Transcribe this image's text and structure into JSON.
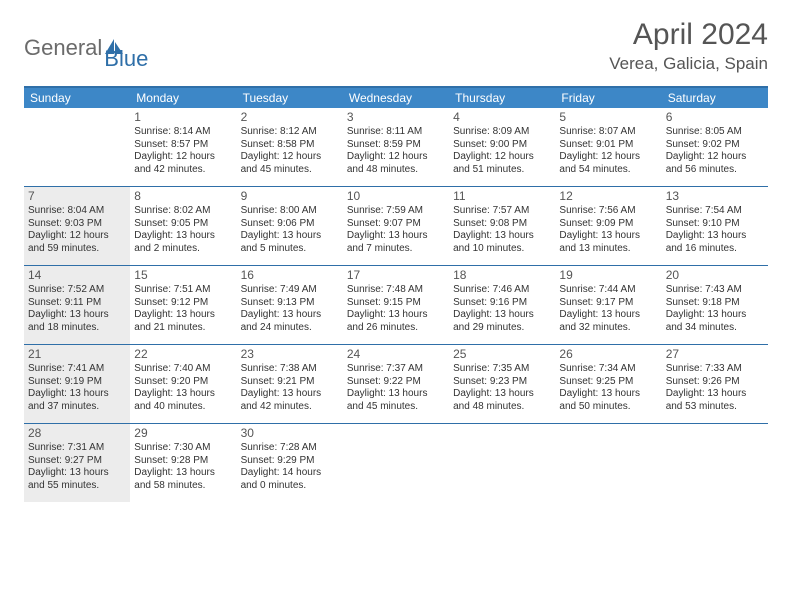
{
  "logo": {
    "part1": "General",
    "part2": "Blue"
  },
  "title": "April 2024",
  "location": "Verea, Galicia, Spain",
  "weekdays": [
    "Sunday",
    "Monday",
    "Tuesday",
    "Wednesday",
    "Thursday",
    "Friday",
    "Saturday"
  ],
  "colors": {
    "header_bar": "#3d87c7",
    "rule": "#2f6fa8",
    "shaded": "#ececec",
    "text": "#333333",
    "title": "#555555"
  },
  "weeks": [
    [
      {
        "num": "",
        "shaded": false,
        "lines": []
      },
      {
        "num": "1",
        "shaded": false,
        "lines": [
          "Sunrise: 8:14 AM",
          "Sunset: 8:57 PM",
          "Daylight: 12 hours",
          "and 42 minutes."
        ]
      },
      {
        "num": "2",
        "shaded": false,
        "lines": [
          "Sunrise: 8:12 AM",
          "Sunset: 8:58 PM",
          "Daylight: 12 hours",
          "and 45 minutes."
        ]
      },
      {
        "num": "3",
        "shaded": false,
        "lines": [
          "Sunrise: 8:11 AM",
          "Sunset: 8:59 PM",
          "Daylight: 12 hours",
          "and 48 minutes."
        ]
      },
      {
        "num": "4",
        "shaded": false,
        "lines": [
          "Sunrise: 8:09 AM",
          "Sunset: 9:00 PM",
          "Daylight: 12 hours",
          "and 51 minutes."
        ]
      },
      {
        "num": "5",
        "shaded": false,
        "lines": [
          "Sunrise: 8:07 AM",
          "Sunset: 9:01 PM",
          "Daylight: 12 hours",
          "and 54 minutes."
        ]
      },
      {
        "num": "6",
        "shaded": false,
        "lines": [
          "Sunrise: 8:05 AM",
          "Sunset: 9:02 PM",
          "Daylight: 12 hours",
          "and 56 minutes."
        ]
      }
    ],
    [
      {
        "num": "7",
        "shaded": true,
        "lines": [
          "Sunrise: 8:04 AM",
          "Sunset: 9:03 PM",
          "Daylight: 12 hours",
          "and 59 minutes."
        ]
      },
      {
        "num": "8",
        "shaded": false,
        "lines": [
          "Sunrise: 8:02 AM",
          "Sunset: 9:05 PM",
          "Daylight: 13 hours",
          "and 2 minutes."
        ]
      },
      {
        "num": "9",
        "shaded": false,
        "lines": [
          "Sunrise: 8:00 AM",
          "Sunset: 9:06 PM",
          "Daylight: 13 hours",
          "and 5 minutes."
        ]
      },
      {
        "num": "10",
        "shaded": false,
        "lines": [
          "Sunrise: 7:59 AM",
          "Sunset: 9:07 PM",
          "Daylight: 13 hours",
          "and 7 minutes."
        ]
      },
      {
        "num": "11",
        "shaded": false,
        "lines": [
          "Sunrise: 7:57 AM",
          "Sunset: 9:08 PM",
          "Daylight: 13 hours",
          "and 10 minutes."
        ]
      },
      {
        "num": "12",
        "shaded": false,
        "lines": [
          "Sunrise: 7:56 AM",
          "Sunset: 9:09 PM",
          "Daylight: 13 hours",
          "and 13 minutes."
        ]
      },
      {
        "num": "13",
        "shaded": false,
        "lines": [
          "Sunrise: 7:54 AM",
          "Sunset: 9:10 PM",
          "Daylight: 13 hours",
          "and 16 minutes."
        ]
      }
    ],
    [
      {
        "num": "14",
        "shaded": true,
        "lines": [
          "Sunrise: 7:52 AM",
          "Sunset: 9:11 PM",
          "Daylight: 13 hours",
          "and 18 minutes."
        ]
      },
      {
        "num": "15",
        "shaded": false,
        "lines": [
          "Sunrise: 7:51 AM",
          "Sunset: 9:12 PM",
          "Daylight: 13 hours",
          "and 21 minutes."
        ]
      },
      {
        "num": "16",
        "shaded": false,
        "lines": [
          "Sunrise: 7:49 AM",
          "Sunset: 9:13 PM",
          "Daylight: 13 hours",
          "and 24 minutes."
        ]
      },
      {
        "num": "17",
        "shaded": false,
        "lines": [
          "Sunrise: 7:48 AM",
          "Sunset: 9:15 PM",
          "Daylight: 13 hours",
          "and 26 minutes."
        ]
      },
      {
        "num": "18",
        "shaded": false,
        "lines": [
          "Sunrise: 7:46 AM",
          "Sunset: 9:16 PM",
          "Daylight: 13 hours",
          "and 29 minutes."
        ]
      },
      {
        "num": "19",
        "shaded": false,
        "lines": [
          "Sunrise: 7:44 AM",
          "Sunset: 9:17 PM",
          "Daylight: 13 hours",
          "and 32 minutes."
        ]
      },
      {
        "num": "20",
        "shaded": false,
        "lines": [
          "Sunrise: 7:43 AM",
          "Sunset: 9:18 PM",
          "Daylight: 13 hours",
          "and 34 minutes."
        ]
      }
    ],
    [
      {
        "num": "21",
        "shaded": true,
        "lines": [
          "Sunrise: 7:41 AM",
          "Sunset: 9:19 PM",
          "Daylight: 13 hours",
          "and 37 minutes."
        ]
      },
      {
        "num": "22",
        "shaded": false,
        "lines": [
          "Sunrise: 7:40 AM",
          "Sunset: 9:20 PM",
          "Daylight: 13 hours",
          "and 40 minutes."
        ]
      },
      {
        "num": "23",
        "shaded": false,
        "lines": [
          "Sunrise: 7:38 AM",
          "Sunset: 9:21 PM",
          "Daylight: 13 hours",
          "and 42 minutes."
        ]
      },
      {
        "num": "24",
        "shaded": false,
        "lines": [
          "Sunrise: 7:37 AM",
          "Sunset: 9:22 PM",
          "Daylight: 13 hours",
          "and 45 minutes."
        ]
      },
      {
        "num": "25",
        "shaded": false,
        "lines": [
          "Sunrise: 7:35 AM",
          "Sunset: 9:23 PM",
          "Daylight: 13 hours",
          "and 48 minutes."
        ]
      },
      {
        "num": "26",
        "shaded": false,
        "lines": [
          "Sunrise: 7:34 AM",
          "Sunset: 9:25 PM",
          "Daylight: 13 hours",
          "and 50 minutes."
        ]
      },
      {
        "num": "27",
        "shaded": false,
        "lines": [
          "Sunrise: 7:33 AM",
          "Sunset: 9:26 PM",
          "Daylight: 13 hours",
          "and 53 minutes."
        ]
      }
    ],
    [
      {
        "num": "28",
        "shaded": true,
        "lines": [
          "Sunrise: 7:31 AM",
          "Sunset: 9:27 PM",
          "Daylight: 13 hours",
          "and 55 minutes."
        ]
      },
      {
        "num": "29",
        "shaded": false,
        "lines": [
          "Sunrise: 7:30 AM",
          "Sunset: 9:28 PM",
          "Daylight: 13 hours",
          "and 58 minutes."
        ]
      },
      {
        "num": "30",
        "shaded": false,
        "lines": [
          "Sunrise: 7:28 AM",
          "Sunset: 9:29 PM",
          "Daylight: 14 hours",
          "and 0 minutes."
        ]
      },
      {
        "num": "",
        "shaded": false,
        "lines": []
      },
      {
        "num": "",
        "shaded": false,
        "lines": []
      },
      {
        "num": "",
        "shaded": false,
        "lines": []
      },
      {
        "num": "",
        "shaded": false,
        "lines": []
      }
    ]
  ]
}
